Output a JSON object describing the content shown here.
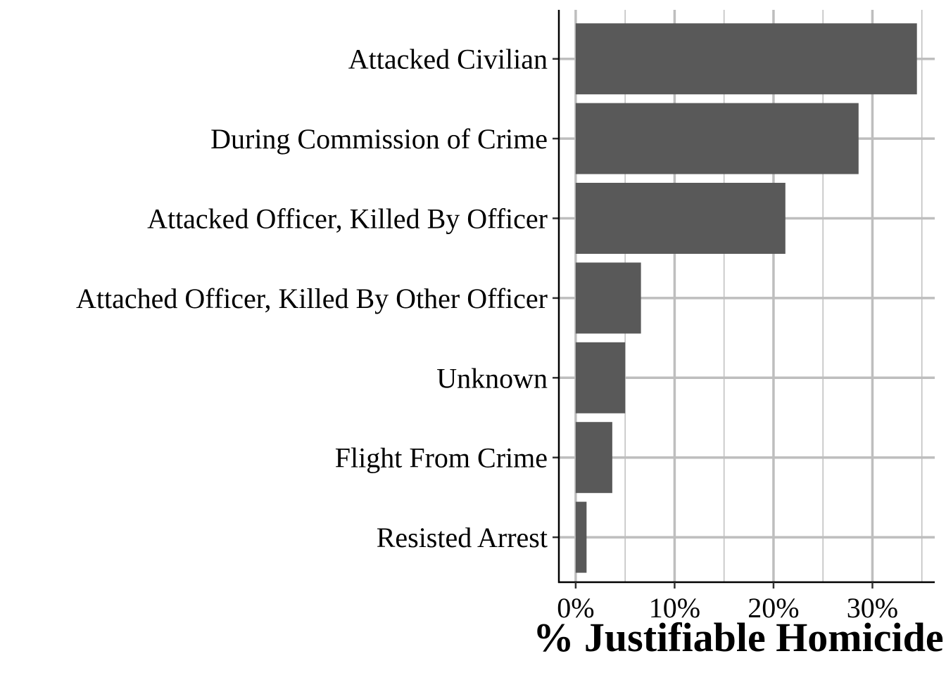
{
  "chart_data": {
    "type": "bar",
    "orientation": "horizontal",
    "title": "",
    "xlabel": "% Justifiable Homicide",
    "ylabel": "",
    "categories": [
      "Attacked Civilian",
      "During Commission of Crime",
      "Attacked Officer, Killed By Officer",
      "Attached Officer, Killed By Other Officer",
      "Unknown",
      "Flight From Crime",
      "Resisted Arrest"
    ],
    "values": [
      34.5,
      28.6,
      21.2,
      6.6,
      5.0,
      3.7,
      1.1
    ],
    "xlim": [
      -1.7,
      36.3
    ],
    "x_ticks": [
      0,
      10,
      20,
      30
    ],
    "x_tick_labels": [
      "0%",
      "10%",
      "20%",
      "30%"
    ],
    "grid": true,
    "bar_color": "#595959",
    "grid_color": "#bebebe"
  }
}
